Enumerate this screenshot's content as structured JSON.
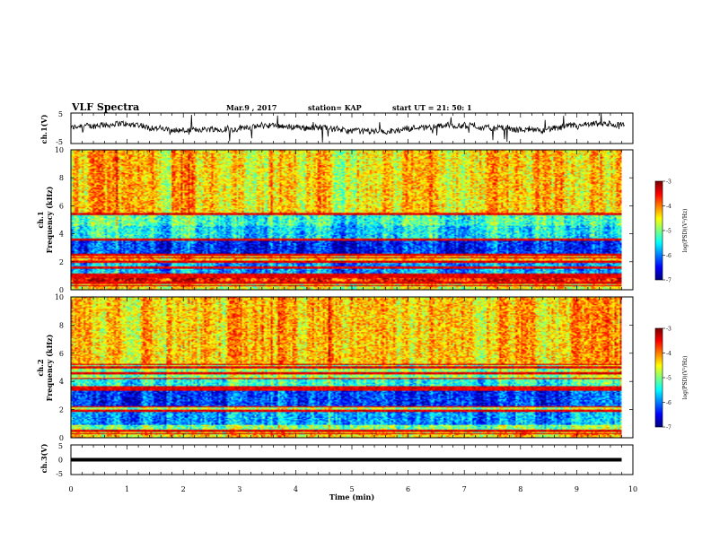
{
  "header": {
    "title": "VLF Spectra",
    "date": "Mar.9 , 2017",
    "station": "station= KAP",
    "start": "start UT = 21: 50: 1"
  },
  "chart_data": [
    {
      "type": "line",
      "name": "ch1-waveform",
      "ylabel": "ch.1(V)",
      "xlim": [
        0,
        10
      ],
      "ylim": [
        -5,
        5
      ],
      "yticks": [
        "5",
        "-5"
      ],
      "description_values": {
        "baseline": 0,
        "typical_amplitude": 1.2
      }
    },
    {
      "type": "heatmap",
      "name": "ch1-spectrogram",
      "ylabel": "ch.1\nFrequency (kHz)",
      "xlim": [
        0,
        10
      ],
      "ylim": [
        0,
        10
      ],
      "yticks": [
        "0",
        "2",
        "4",
        "6",
        "8",
        "10"
      ],
      "data_xmax": 9.8,
      "colorbar": {
        "label": "log(PSD)(V²/Hz)",
        "range": [
          -7,
          -3
        ],
        "ticks": [
          "-3",
          "-4",
          "-5",
          "-6",
          "-7"
        ]
      },
      "bands": [
        {
          "from": 0.0,
          "to": 0.6,
          "level": -4.6
        },
        {
          "from": 0.6,
          "to": 0.9,
          "level": -3.6
        },
        {
          "from": 0.9,
          "to": 1.2,
          "level": -4.8
        },
        {
          "from": 1.2,
          "to": 2.0,
          "level": -5.9
        },
        {
          "from": 2.0,
          "to": 2.5,
          "level": -4.4
        },
        {
          "from": 2.5,
          "to": 3.6,
          "level": -6.4
        },
        {
          "from": 3.6,
          "to": 4.6,
          "level": -5.6
        },
        {
          "from": 4.6,
          "to": 5.4,
          "level": -5.3
        },
        {
          "from": 5.4,
          "to": 10.0,
          "level": -4.4
        }
      ],
      "lines_khz": [
        0.3,
        0.5,
        0.9,
        1.1,
        1.6,
        2.0,
        2.3,
        2.5,
        3.6,
        5.4
      ]
    },
    {
      "type": "heatmap",
      "name": "ch2-spectrogram",
      "ylabel": "ch.2\nFrequency (kHz)",
      "xlim": [
        0,
        10
      ],
      "ylim": [
        0,
        10
      ],
      "yticks": [
        "0",
        "2",
        "4",
        "6",
        "8",
        "10"
      ],
      "data_xmax": 9.8,
      "colorbar": {
        "label": "log(PSD)(V²/Hz)",
        "range": [
          -7,
          -3
        ],
        "ticks": [
          "-3",
          "-4",
          "-5",
          "-6",
          "-7"
        ]
      },
      "bands": [
        {
          "from": 0.0,
          "to": 0.4,
          "level": -4.4
        },
        {
          "from": 0.4,
          "to": 0.9,
          "level": -5.0
        },
        {
          "from": 0.9,
          "to": 1.8,
          "level": -5.9
        },
        {
          "from": 1.8,
          "to": 2.2,
          "level": -4.8
        },
        {
          "from": 2.2,
          "to": 3.4,
          "level": -6.3
        },
        {
          "from": 3.4,
          "to": 4.2,
          "level": -5.4
        },
        {
          "from": 4.2,
          "to": 5.2,
          "level": -4.9
        },
        {
          "from": 5.2,
          "to": 10.0,
          "level": -4.3
        }
      ],
      "lines_khz": [
        0.3,
        0.5,
        1.9,
        2.2,
        3.4,
        3.6,
        4.2,
        4.6,
        5.0,
        5.2
      ]
    },
    {
      "type": "line",
      "name": "ch3-waveform",
      "ylabel": "ch.3(V)",
      "xlabel": "Time (min)",
      "xlim": [
        0,
        10
      ],
      "ylim": [
        -5,
        5
      ],
      "yticks": [
        "5",
        "0",
        "-5"
      ],
      "xticks": [
        "0",
        "1",
        "2",
        "3",
        "4",
        "5",
        "6",
        "7",
        "8",
        "9",
        "10"
      ],
      "constant_value": 0,
      "data_xmax": 9.8
    }
  ]
}
